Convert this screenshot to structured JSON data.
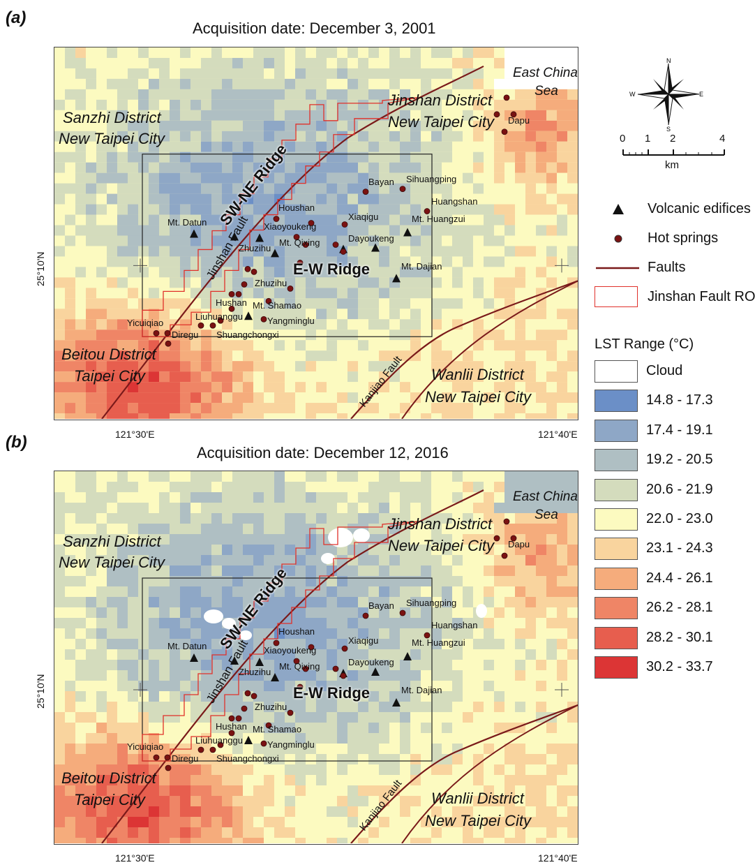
{
  "panels": [
    {
      "label": "(a)",
      "title": "Acquisition date: December 3, 2001"
    },
    {
      "label": "(b)",
      "title": "Acquisition date: December 12, 2016"
    }
  ],
  "axes": {
    "lon_left": "121°30'E",
    "lon_right": "121°40'E",
    "lat": "25°10'N"
  },
  "map_labels": {
    "east_china_sea": [
      "East China",
      "Sea"
    ],
    "sanzhi": [
      "Sanzhi District",
      "New Taipei City"
    ],
    "jinshan_district": [
      "Jinshan District",
      "New Taipei City"
    ],
    "beitou": [
      "Beitou District",
      "Taipei City"
    ],
    "wanli": [
      "Wanlii District",
      "New Taipei City"
    ],
    "sw_ne_ridge": "SW-NE Ridge",
    "ew_ridge": "E-W Ridge",
    "jinshan_fault": "Jinshan Fault",
    "kanjiao_fault": "Kanjiao Fault"
  },
  "places": {
    "dapu": "Dapu",
    "bayan": "Bayan",
    "sihuangping": "Sihuangping",
    "huangshan": "Huangshan",
    "houshan": "Houshan",
    "xiaqigu": "Xiaqigu",
    "mt_huangzui": "Mt. Huangzui",
    "mt_datun": "Mt. Datun",
    "xiaoyoukeng": "Xiaoyoukeng",
    "mt_qixing": "Mt. Qixing",
    "dayoukeng": "Dayoukeng",
    "zhuzihu": "Zhuzihu",
    "mt_dajian": "Mt. Dajian",
    "zhuzihu2": "Zhuzihu",
    "hushan": "Hushan",
    "mt_shamao": "Mt. Shamao",
    "liuhuanggu": "Liuhuanggu",
    "yangminglu": "Yangminglu",
    "yicuiqiao": "Yicuiqiao",
    "diregu": "Diregu",
    "shuangchongxi": "Shuangchongxi"
  },
  "compass": {
    "n": "N",
    "s": "S",
    "e": "E",
    "w": "W"
  },
  "scale": {
    "ticks": [
      "0",
      "1",
      "2",
      "4"
    ],
    "unit": "km"
  },
  "legend": {
    "volcanic": "Volcanic edifices",
    "hot_springs": "Hot springs",
    "faults": "Faults",
    "roi": "Jinshan Fault ROI",
    "lst_title": "LST Range (°C)",
    "classes": [
      {
        "label": "Cloud",
        "color": "#ffffff"
      },
      {
        "label": "14.8 - 17.3",
        "color": "#6b8fc7"
      },
      {
        "label": "17.4 - 19.1",
        "color": "#8ea7c6"
      },
      {
        "label": "19.2 - 20.5",
        "color": "#afbfc3"
      },
      {
        "label": "20.6 - 21.9",
        "color": "#d4dcbd"
      },
      {
        "label": "22.0 - 23.0",
        "color": "#fcfac0"
      },
      {
        "label": "23.1 - 24.3",
        "color": "#f9d49e"
      },
      {
        "label": "24.4 - 26.1",
        "color": "#f5ac7c"
      },
      {
        "label": "26.2 - 28.1",
        "color": "#ef8566"
      },
      {
        "label": "28.2 - 30.1",
        "color": "#e75e4e"
      },
      {
        "label": "30.2 - 33.7",
        "color": "#dc3535"
      }
    ]
  },
  "colors": {
    "fault": "#7a1a1a",
    "roi": "#e0302a",
    "hot_spring": "#7a1212",
    "cloud_patch": "#ffffff"
  }
}
